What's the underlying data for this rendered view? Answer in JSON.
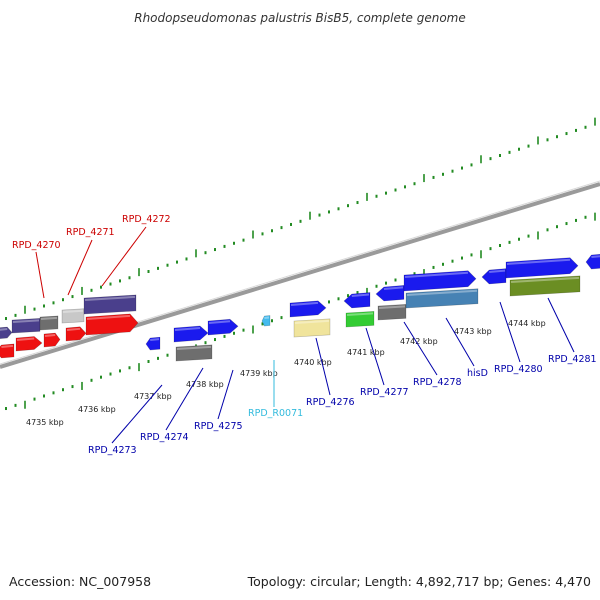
{
  "title": "Rhodopseudomonas palustris BisB5, complete genome",
  "footer": {
    "accession": "Accession: NC_007958",
    "summary": "Topology: circular; Length: 4,892,717 bp; Genes: 4,470"
  },
  "colors": {
    "background": "#ffffff",
    "backbone": "#9a9a9a",
    "ticks": "#228b22",
    "label_red": "#cc0000",
    "label_blue": "#0000aa",
    "label_cyan": "#33bbdd",
    "gene_blue": "#1a1aee",
    "gene_red": "#ee1111",
    "gene_navy": "#4a3f8c",
    "gene_gray": "#6e6e6e",
    "gene_lightgray": "#c8c8c8",
    "gene_yellow": "#f0e49c",
    "gene_green": "#33cc33",
    "gene_steelblue": "#4682b4",
    "gene_olive": "#6b8e23",
    "gene_cyan": "#44bbee"
  },
  "kbp_ticks": [
    "4735 kbp",
    "4736 kbp",
    "4737 kbp",
    "4738 kbp",
    "4739 kbp",
    "4740 kbp",
    "4741 kbp",
    "4742 kbp",
    "4743 kbp",
    "4744 kbp"
  ],
  "gene_labels": {
    "RPD_4270": "RPD_4270",
    "RPD_4271": "RPD_4271",
    "RPD_4272": "RPD_4272",
    "RPD_4273": "RPD_4273",
    "RPD_4274": "RPD_4274",
    "RPD_4275": "RPD_4275",
    "RPD_R0071": "RPD_R0071",
    "RPD_4276": "RPD_4276",
    "RPD_4277": "RPD_4277",
    "RPD_4278": "RPD_4278",
    "hisD": "hisD",
    "RPD_4280": "RPD_4280",
    "RPD_4281": "RPD_4281"
  }
}
